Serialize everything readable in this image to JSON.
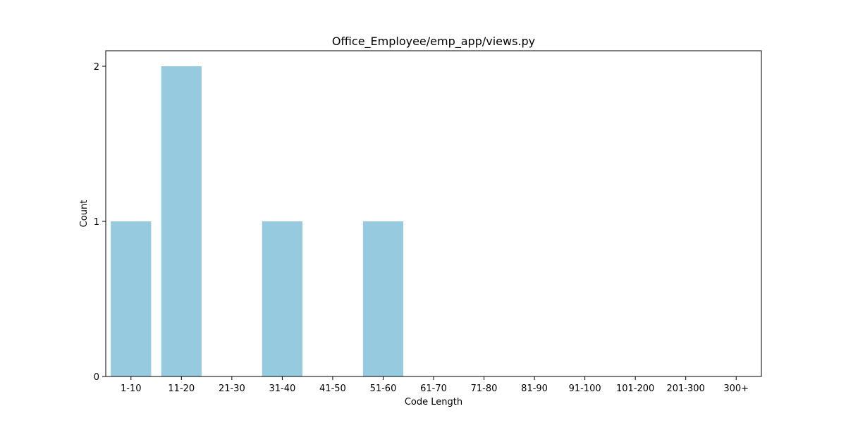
{
  "chart_data": {
    "type": "bar",
    "title": "Office_Employee/emp_app/views.py",
    "xlabel": "Code Length",
    "ylabel": "Count",
    "categories": [
      "1-10",
      "11-20",
      "21-30",
      "31-40",
      "41-50",
      "51-60",
      "61-70",
      "71-80",
      "81-90",
      "91-100",
      "101-200",
      "201-300",
      "300+"
    ],
    "values": [
      1,
      2,
      0,
      1,
      0,
      1,
      0,
      0,
      0,
      0,
      0,
      0,
      0
    ],
    "ylim": [
      0,
      2.1
    ],
    "yticks": [
      0,
      1,
      2
    ],
    "grid": false,
    "bar_color": "#96cadf"
  }
}
